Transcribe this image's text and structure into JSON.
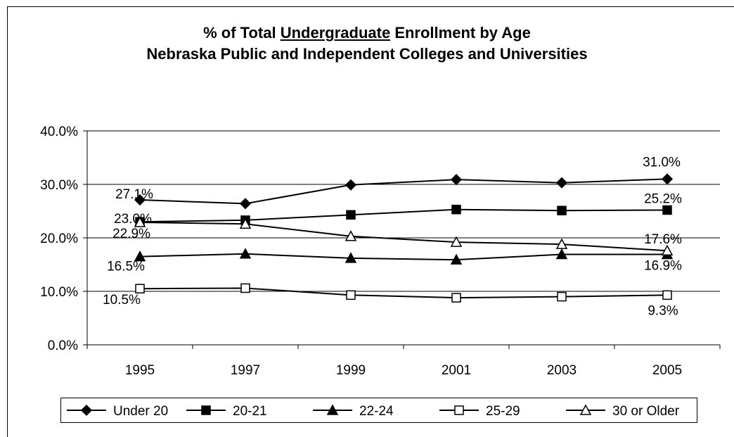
{
  "title": {
    "prefix": "% of Total ",
    "underlined": "Undergraduate",
    "suffix": " Enrollment by Age",
    "line2": "Nebraska Public and Independent Colleges and Universities"
  },
  "chart_data": {
    "type": "line",
    "title": "% of Total Undergraduate Enrollment by Age Nebraska Public and Independent Colleges and Universities",
    "xlabel": "",
    "ylabel": "",
    "categories": [
      "1995",
      "1997",
      "1999",
      "2001",
      "2003",
      "2005"
    ],
    "ylim": [
      0,
      40
    ],
    "yticks": [
      "0.0%",
      "10.0%",
      "20.0%",
      "30.0%",
      "40.0%"
    ],
    "grid": true,
    "legend_position": "bottom",
    "series": [
      {
        "name": "Under 20",
        "marker": "diamond-filled",
        "values": [
          27.1,
          26.4,
          29.9,
          30.9,
          30.3,
          31.0
        ],
        "labels": {
          "0": "27.1%",
          "5": "31.0%"
        }
      },
      {
        "name": "20-21",
        "marker": "square-filled",
        "values": [
          23.0,
          23.3,
          24.3,
          25.3,
          25.1,
          25.2
        ],
        "labels": {
          "0": "23.0%",
          "5": "25.2%"
        }
      },
      {
        "name": "22-24",
        "marker": "triangle-filled",
        "values": [
          16.5,
          17.0,
          16.2,
          15.9,
          16.9,
          16.9
        ],
        "labels": {
          "0": "16.5%",
          "5": "16.9%"
        }
      },
      {
        "name": "25-29",
        "marker": "square-open",
        "values": [
          10.5,
          10.6,
          9.3,
          8.8,
          9.0,
          9.3
        ],
        "labels": {
          "0": "10.5%",
          "5": "9.3%"
        }
      },
      {
        "name": "30 or Older",
        "marker": "triangle-open",
        "values": [
          22.9,
          22.6,
          20.3,
          19.2,
          18.8,
          17.6
        ],
        "labels": {
          "0": "22.9%",
          "5": "17.6%"
        }
      }
    ]
  }
}
